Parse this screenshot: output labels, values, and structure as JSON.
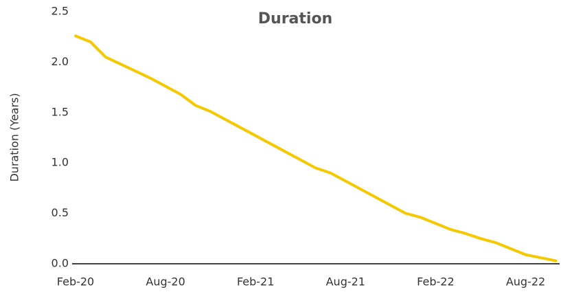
{
  "chart_data": {
    "type": "line",
    "title": "Duration",
    "y_label": "Duration (Years)",
    "categories": [
      "Feb-20",
      null,
      null,
      null,
      null,
      null,
      "Aug-20",
      null,
      null,
      null,
      null,
      null,
      "Feb-21",
      null,
      null,
      null,
      null,
      null,
      "Aug-21",
      null,
      null,
      null,
      null,
      null,
      "Feb-22",
      null,
      null,
      null,
      null,
      null,
      "Aug-22",
      null,
      null
    ],
    "series": [
      {
        "name": "Duration",
        "color": "#f5c800",
        "values": [
          2.26,
          2.2,
          2.05,
          1.98,
          1.91,
          1.84,
          1.76,
          1.68,
          1.57,
          1.51,
          1.43,
          1.35,
          1.27,
          1.19,
          1.11,
          1.03,
          0.95,
          0.9,
          0.82,
          0.74,
          0.66,
          0.58,
          0.5,
          0.46,
          0.4,
          0.34,
          0.3,
          0.25,
          0.21,
          0.15,
          0.09,
          0.06,
          0.03
        ]
      }
    ],
    "ylim": [
      0,
      2.5
    ],
    "yticks": [
      {
        "value": 0,
        "label": "0.0"
      },
      {
        "value": 0.5,
        "label": "0.5"
      },
      {
        "value": 1,
        "label": "1.0"
      },
      {
        "value": 1.5,
        "label": "1.5"
      },
      {
        "value": 2,
        "label": "2.0"
      },
      {
        "value": 2.5,
        "label": "2.5"
      }
    ],
    "grid": false
  }
}
